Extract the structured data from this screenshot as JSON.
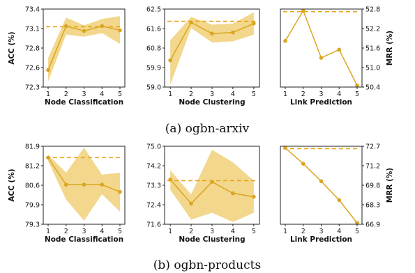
{
  "colors": {
    "line": "#DAA520",
    "band": "#EDC966",
    "reference": "#E8A317"
  },
  "captions": [
    "(a) ogbn-arxiv",
    "(b) ogbn-products"
  ],
  "chart_data": [
    {
      "type": "line",
      "group": "ogbn-arxiv",
      "xlabel": "Node Classification",
      "ylabel": "ACC (%)",
      "x": [
        1,
        2,
        3,
        4,
        5
      ],
      "series": [
        {
          "values": [
            72.54,
            73.16,
            73.09,
            73.16,
            73.1
          ]
        }
      ],
      "band_lower": [
        72.38,
        73.04,
        73.01,
        73.06,
        72.91
      ],
      "band_upper": [
        72.71,
        73.28,
        73.17,
        73.26,
        73.3
      ],
      "reference": 73.15,
      "ylim": [
        72.3,
        73.4
      ],
      "yticks": [
        "72.3",
        "72.6",
        "72.8",
        "73.1",
        "73.4"
      ],
      "yticks_values": [
        72.3,
        72.575,
        72.85,
        73.125,
        73.4
      ]
    },
    {
      "type": "line",
      "group": "ogbn-arxiv",
      "xlabel": "Node Clustering",
      "ylabel": "",
      "x": [
        1,
        2,
        3,
        4,
        5
      ],
      "series": [
        {
          "values": [
            60.2,
            61.9,
            61.4,
            61.45,
            61.85
          ]
        }
      ],
      "band_lower": [
        59.1,
        61.65,
        61.0,
        61.05,
        61.35
      ],
      "band_upper": [
        61.1,
        62.15,
        61.8,
        61.85,
        62.35
      ],
      "reference": 61.95,
      "ylim": [
        59.0,
        62.5
      ],
      "yticks": [
        "59.0",
        "59.9",
        "60.8",
        "61.6",
        "62.5"
      ],
      "yticks_values": [
        59.0,
        59.875,
        60.75,
        61.625,
        62.5
      ]
    },
    {
      "type": "line",
      "group": "ogbn-arxiv",
      "xlabel": "Link Prediction",
      "ylabel": "MRR (%)",
      "x": [
        1,
        2,
        3,
        4,
        5
      ],
      "series": [
        {
          "values": [
            51.82,
            52.75,
            51.3,
            51.55,
            50.45
          ]
        }
      ],
      "reference": 52.72,
      "ylim": [
        50.4,
        52.8
      ],
      "yticks": [
        "50.4",
        "51.0",
        "51.6",
        "52.2",
        "52.8"
      ],
      "yticks_values": [
        50.4,
        51.0,
        51.6,
        52.2,
        52.8
      ],
      "y_axis_side": "right"
    },
    {
      "type": "line",
      "group": "ogbn-products",
      "xlabel": "Node Classification",
      "ylabel": "ACC (%)",
      "x": [
        1,
        2,
        3,
        4,
        5
      ],
      "series": [
        {
          "values": [
            81.52,
            80.62,
            80.62,
            80.62,
            80.38
          ]
        }
      ],
      "band_lower": [
        81.4,
        80.12,
        79.42,
        80.3,
        79.72
      ],
      "band_upper": [
        81.62,
        81.02,
        81.85,
        80.95,
        81.02
      ],
      "reference": 81.52,
      "ylim": [
        79.3,
        81.9
      ],
      "yticks": [
        "79.3",
        "79.9",
        "80.6",
        "81.2",
        "81.9"
      ],
      "yticks_values": [
        79.3,
        79.95,
        80.6,
        81.25,
        81.9
      ]
    },
    {
      "type": "line",
      "group": "ogbn-products",
      "xlabel": "Node Clustering",
      "ylabel": "",
      "x": [
        1,
        2,
        3,
        4,
        5
      ],
      "series": [
        {
          "values": [
            73.55,
            72.5,
            73.45,
            72.95,
            72.8
          ]
        }
      ],
      "band_lower": [
        73.1,
        71.8,
        72.1,
        71.7,
        72.1
      ],
      "band_upper": [
        73.95,
        72.9,
        74.85,
        74.3,
        73.5
      ],
      "reference": 73.5,
      "ylim": [
        71.6,
        75.0
      ],
      "yticks": [
        "71.6",
        "72.4",
        "73.3",
        "74.2",
        "75.0"
      ],
      "yticks_values": [
        71.6,
        72.45,
        73.3,
        74.15,
        75.0
      ]
    },
    {
      "type": "line",
      "group": "ogbn-products",
      "xlabel": "Link Prediction",
      "ylabel": "MRR (%)",
      "x": [
        1,
        2,
        3,
        4,
        5
      ],
      "series": [
        {
          "values": [
            72.58,
            71.4,
            70.1,
            68.7,
            67.0
          ]
        }
      ],
      "reference": 72.52,
      "ylim": [
        66.9,
        72.7
      ],
      "yticks": [
        "66.9",
        "68.3",
        "69.8",
        "71.2",
        "72.7"
      ],
      "yticks_values": [
        66.9,
        68.35,
        69.8,
        71.25,
        72.7
      ],
      "y_axis_side": "right"
    }
  ]
}
